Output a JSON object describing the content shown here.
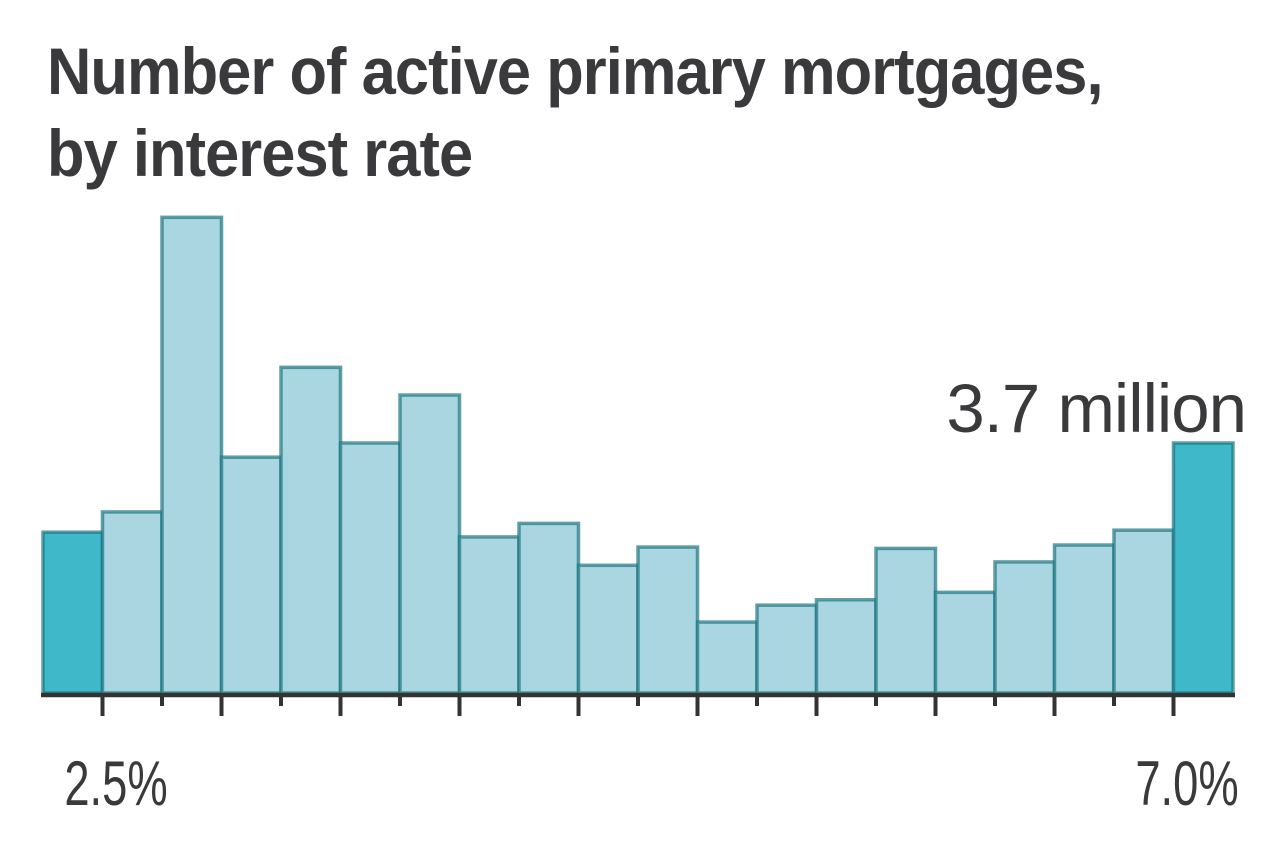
{
  "header": {
    "title_line1": "Number of active primary mortgages,",
    "title_line2": "by interest rate"
  },
  "chart_data": {
    "type": "bar",
    "subtype": "histogram",
    "title": "Number of active primary mortgages, by interest rate",
    "xlabel": "",
    "ylabel": "",
    "categories": [
      "2.25–2.50%",
      "2.50–2.75%",
      "2.75–3.00%",
      "3.00–3.25%",
      "3.25–3.50%",
      "3.50–3.75%",
      "3.75–4.00%",
      "4.00–4.25%",
      "4.25–4.50%",
      "4.50–4.75%",
      "4.75–5.00%",
      "5.00–5.25%",
      "5.25–5.50%",
      "5.50–5.75%",
      "5.75–6.00%",
      "6.00–6.25%",
      "6.25–6.50%",
      "6.50–6.75%",
      "6.75–7.00%",
      "7.00–7.25%"
    ],
    "bin_edges_percent": [
      2.25,
      2.5,
      2.75,
      3.0,
      3.25,
      3.5,
      3.75,
      4.0,
      4.25,
      4.5,
      4.75,
      5.0,
      5.25,
      5.5,
      5.75,
      6.0,
      6.25,
      6.5,
      6.75,
      7.0,
      7.25
    ],
    "bin_width_percent": 0.25,
    "values_millions": [
      2.38,
      2.68,
      7.04,
      3.49,
      4.82,
      3.7,
      4.41,
      2.31,
      2.51,
      1.89,
      2.16,
      1.05,
      1.3,
      1.38,
      2.14,
      1.49,
      1.94,
      2.19,
      2.41,
      3.7
    ],
    "highlighted_bin_indexes": [
      0,
      19
    ],
    "annotation": {
      "text": "3.7 million",
      "target_bin_index": 19
    },
    "x_axis": {
      "left_label": "2.5%",
      "right_label": "7.0%",
      "tick_interval_percent": 0.25,
      "long_tick_interval_percent": 0.5
    },
    "legend": {
      "shown": false
    },
    "grid": {
      "shown": false
    },
    "colors": {
      "bar_fill": "#a9d6e1",
      "highlight_fill": "#3fb8ca",
      "bar_stroke": "#1e7682",
      "axis": "#333333",
      "text": "#3a3a3c"
    }
  }
}
